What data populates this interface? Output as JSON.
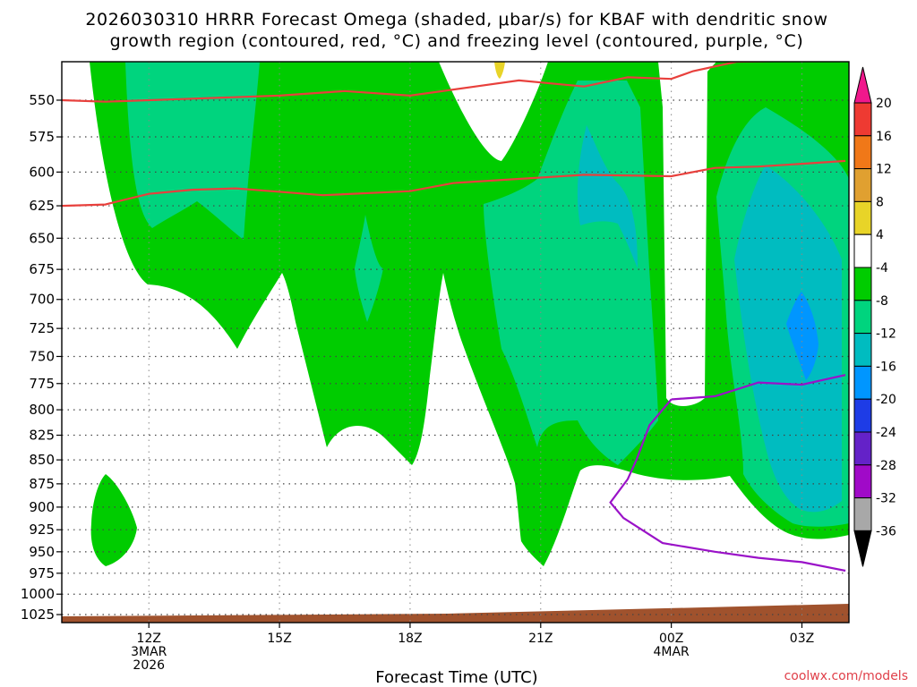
{
  "chart_data": {
    "type": "heatmap",
    "title_line1": "2026030310 HRRR Forecast Omega (shaded, μbar/s) for KBAF with dendritic snow",
    "title_line2": "growth region (contoured, red, °C) and freezing level (contoured, purple, °C)",
    "xlabel": "Forecast Time (UTC)",
    "x_range_hours": [
      10.0,
      4.08
    ],
    "y_range_hpa": [
      525,
      1035
    ],
    "y_ticks": [
      550,
      575,
      600,
      625,
      650,
      675,
      700,
      725,
      750,
      775,
      800,
      825,
      850,
      875,
      900,
      925,
      950,
      975,
      1000,
      1025
    ],
    "x_ticks": [
      {
        "label": "12Z",
        "hour": 12,
        "sub1": "3MAR",
        "sub2": "2026"
      },
      {
        "label": "15Z",
        "hour": 15,
        "sub1": "",
        "sub2": ""
      },
      {
        "label": "18Z",
        "hour": 18,
        "sub1": "",
        "sub2": ""
      },
      {
        "label": "21Z",
        "hour": 21,
        "sub1": "",
        "sub2": ""
      },
      {
        "label": "00Z",
        "hour": 24,
        "sub1": "4MAR",
        "sub2": ""
      },
      {
        "label": "03Z",
        "hour": 27,
        "sub1": "",
        "sub2": ""
      }
    ],
    "colorbar": {
      "labels": [
        "20",
        "16",
        "12",
        "8",
        "4",
        "-4",
        "-8",
        "-12",
        "-16",
        "-20",
        "-24",
        "-28",
        "-32",
        "-36"
      ],
      "colors": [
        "#f0188c",
        "#ee3a32",
        "#f07818",
        "#e0a030",
        "#e8d428",
        "#ffffff",
        "#00cc00",
        "#00d47e",
        "#00bcc0",
        "#0096ff",
        "#1e3ce6",
        "#6422c8",
        "#a00ac8",
        "#a8a8a8",
        "#000000"
      ]
    },
    "dendritic_minus12_hpa": [
      [
        10.0,
        550
      ],
      [
        11,
        551
      ],
      [
        13,
        549
      ],
      [
        15,
        547
      ],
      [
        16.5,
        544
      ],
      [
        18,
        547
      ],
      [
        19.5,
        541
      ],
      [
        20.5,
        537
      ],
      [
        22,
        541
      ],
      [
        23,
        535
      ],
      [
        24.0,
        536
      ],
      [
        24.5,
        531
      ],
      [
        25.5,
        525
      ],
      [
        28.0,
        524
      ]
    ],
    "dendritic_minus18_hpa": [
      [
        10.0,
        625
      ],
      [
        11,
        624
      ],
      [
        12,
        616
      ],
      [
        13,
        613
      ],
      [
        14,
        612
      ],
      [
        16,
        617
      ],
      [
        18,
        614
      ],
      [
        19,
        608
      ],
      [
        20,
        606
      ],
      [
        21,
        604
      ],
      [
        22,
        602
      ],
      [
        24,
        603
      ],
      [
        25,
        597
      ],
      [
        26,
        596
      ],
      [
        27,
        594
      ],
      [
        28.0,
        592
      ]
    ],
    "freezing_level_hpa": [
      [
        24.0,
        790
      ],
      [
        25,
        787
      ],
      [
        26,
        774
      ],
      [
        27,
        776
      ],
      [
        28.0,
        767
      ]
    ],
    "freezing_level_lower_hpa": [
      [
        24.0,
        790
      ],
      [
        23.5,
        815
      ],
      [
        23.2,
        850
      ],
      [
        23.0,
        870
      ],
      [
        22.6,
        895
      ],
      [
        22.9,
        912
      ],
      [
        23.8,
        940
      ],
      [
        25,
        950
      ],
      [
        26,
        957
      ],
      [
        27,
        962
      ],
      [
        28.0,
        972
      ]
    ],
    "terrain_hpa": 1025,
    "credit": "coolwx.com/models"
  }
}
